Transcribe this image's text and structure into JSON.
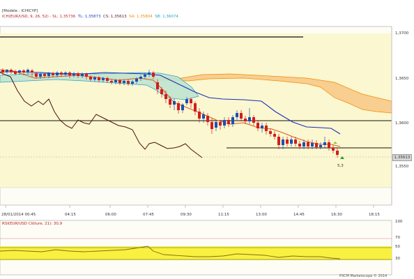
{
  "header": {
    "module_label": "[Modèle : ICHICYP]",
    "symbol_label": "ICH(EUR/USD, 9, 26, 52) -",
    "indicator_values": [
      {
        "name": "SL",
        "text": "SL: 1,35736",
        "color": "#c62828"
      },
      {
        "name": "TL",
        "text": "TL: 1,35873",
        "color": "#1f3fbf"
      },
      {
        "name": "CS",
        "text": "CS: 1,35613",
        "color": "#5a1a1a"
      },
      {
        "name": "SA",
        "text": "SA: 1,35804",
        "color": "#f08c00"
      },
      {
        "name": "SB",
        "text": "SB: 1,36074",
        "color": "#29a3c7"
      }
    ]
  },
  "price_axis": {
    "ticks": [
      "1,3700",
      "1,3650",
      "1,3600",
      "1,3550"
    ],
    "current_price": "1,35613"
  },
  "time_axis": {
    "labels": [
      "28/01/2014 00:45",
      "04:15",
      "06:00",
      "07:45",
      "09:30",
      "11:15",
      "13:00",
      "14:45",
      "16:30",
      "18:15"
    ]
  },
  "annotations": {
    "signal_value": "5,3"
  },
  "rsi_panel": {
    "label": "RSI(EUR/USD Clôture, 21): 30,9",
    "ticks": [
      "100",
      "70",
      "50",
      "30"
    ]
  },
  "footer": {
    "copyright": "PXCM Marketscope © 2014"
  },
  "colors": {
    "plot_background": "#fbf7d0",
    "bull_candle": "#1e4fb4",
    "bear_candle": "#d11e1e",
    "cloud_bull": "#bfe3cf",
    "cloud_bear": "#f7c98a",
    "tenkan": "#e05a1a",
    "kijun": "#1a2db8",
    "chikou": "#4a1010"
  }
}
